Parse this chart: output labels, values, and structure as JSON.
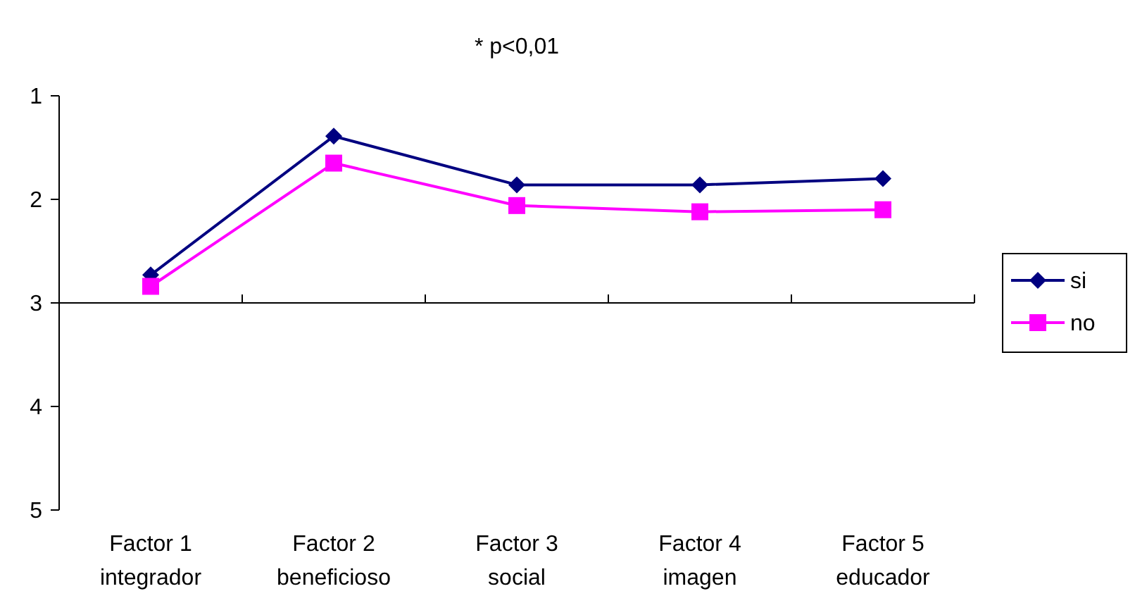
{
  "chart_data": {
    "type": "line",
    "title": "* p<0,01",
    "categories": [
      "Factor 1\nintegrador",
      "Factor 2\nbeneficioso",
      "Factor 3\nsocial",
      "Factor 4\nimagen",
      "Factor 5\neducador"
    ],
    "series": [
      {
        "name": "si",
        "color": "#000080",
        "marker": "diamond",
        "values": [
          2.73,
          1.39,
          1.86,
          1.86,
          1.8
        ]
      },
      {
        "name": "no",
        "color": "#ff00ff",
        "marker": "square",
        "values": [
          2.84,
          1.65,
          2.06,
          2.12,
          2.1
        ]
      }
    ],
    "ylim": [
      5,
      1
    ],
    "yticks": [
      1,
      2,
      3,
      4,
      5
    ],
    "ref_lines": [
      {
        "axis": "y",
        "value": 3,
        "color": "#000000"
      }
    ],
    "grid": false,
    "legend": "right"
  }
}
